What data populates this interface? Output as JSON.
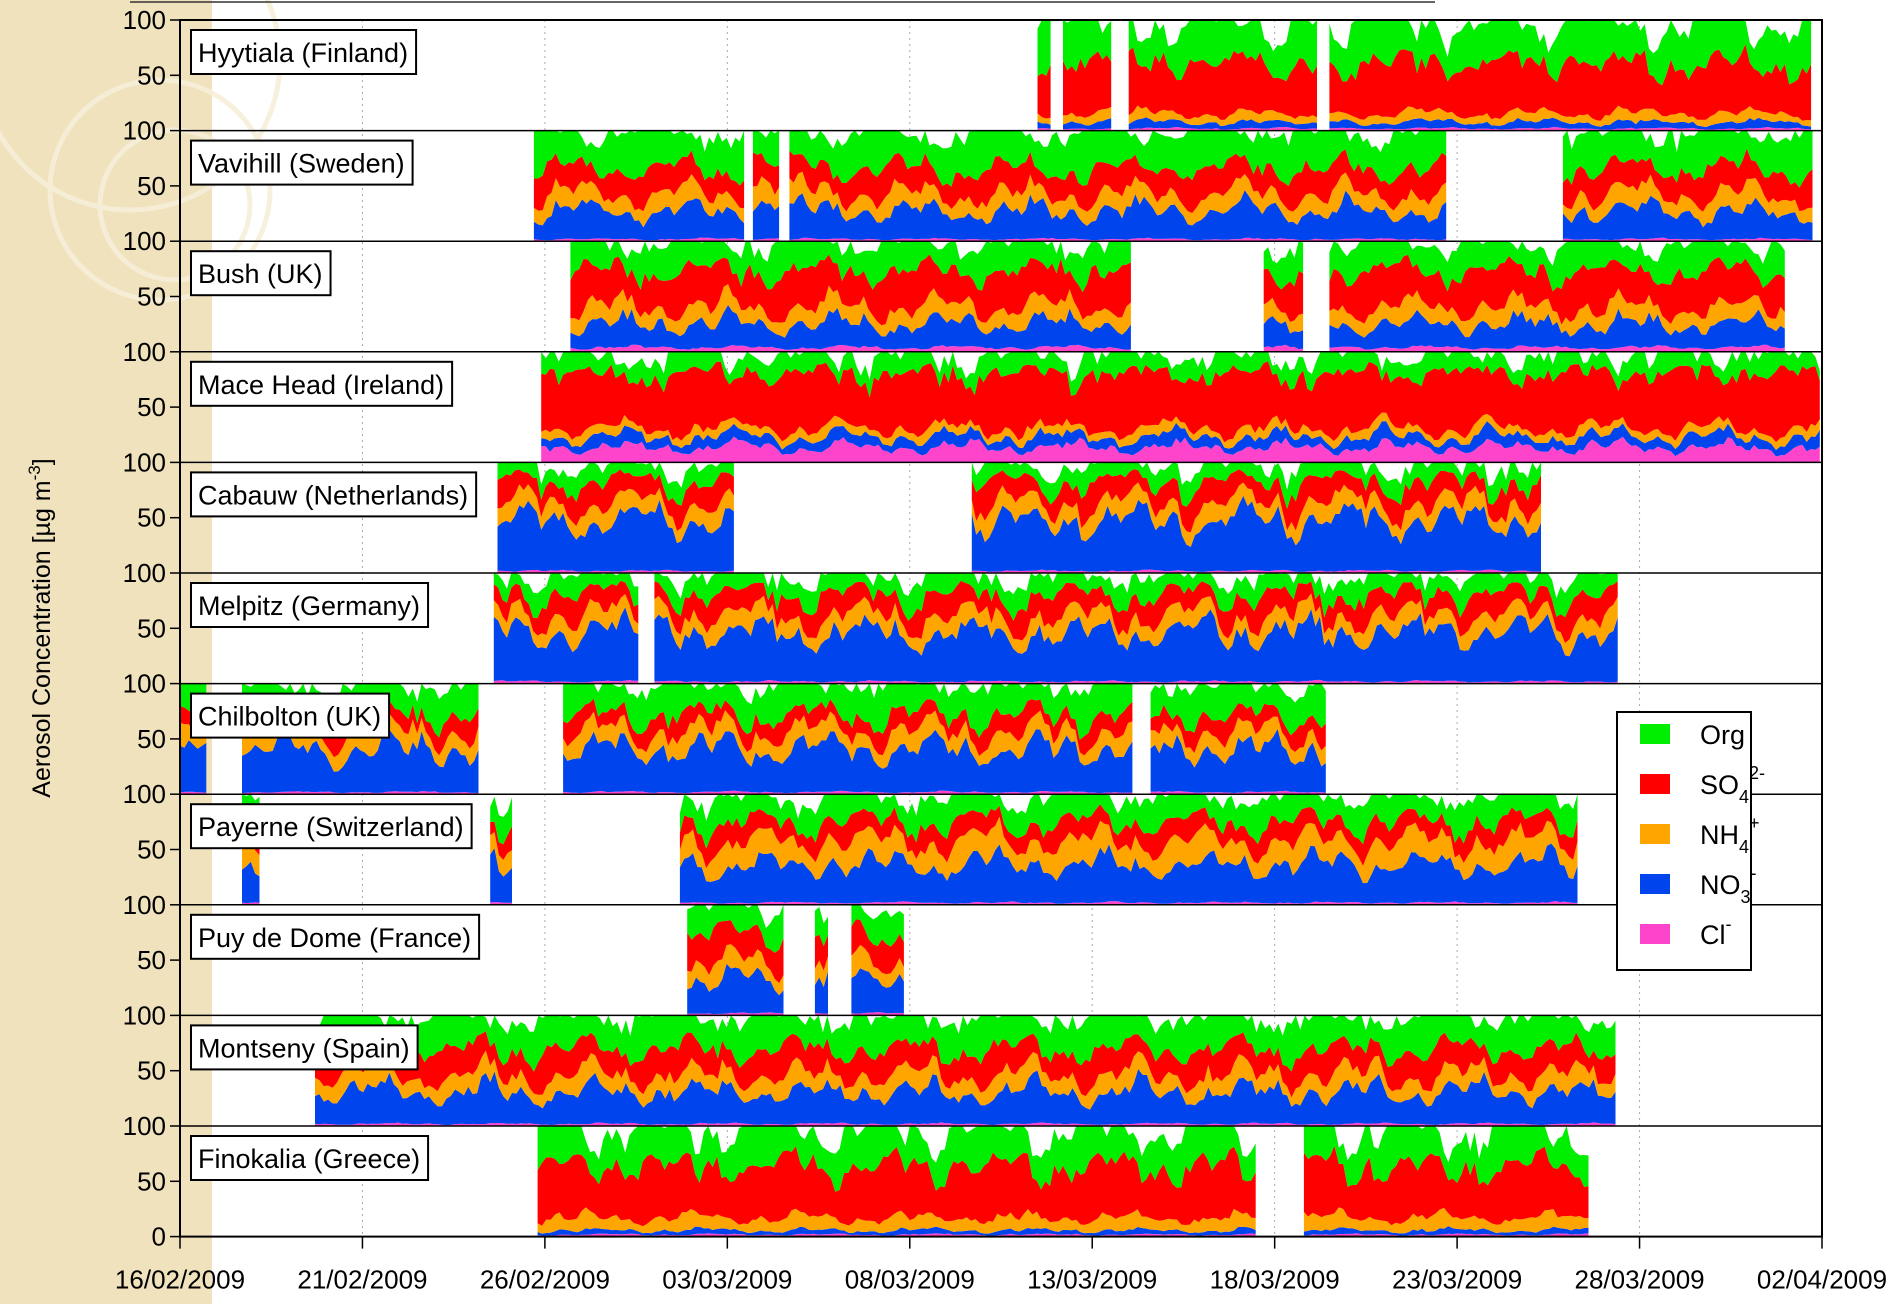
{
  "chart_data": {
    "type": "area",
    "ylabel": "Aerosol Concentration [µg m",
    "ylabel_superscript": "-3",
    "ylabel_close": "]",
    "x_ticks": [
      "16/02/2009",
      "21/02/2009",
      "26/02/2009",
      "03/03/2009",
      "08/03/2009",
      "13/03/2009",
      "18/03/2009",
      "23/03/2009",
      "28/03/2009",
      "02/04/2009"
    ],
    "x_range": [
      "16/02/2009",
      "02/04/2009"
    ],
    "y_ticks_panel": [
      "100",
      "50"
    ],
    "y_tick_bottom": "0",
    "ylim": [
      0,
      100
    ],
    "grid": "vertical dotted",
    "legend_position": "right",
    "stacking_order": [
      "Cl",
      "NO3",
      "NH4",
      "SO4",
      "Org"
    ],
    "series": [
      {
        "key": "Org",
        "name": "Org",
        "sup": "",
        "sub": "",
        "color": "#00ee00"
      },
      {
        "key": "SO4",
        "name": "SO",
        "sub": "4",
        "sup": "2-",
        "color": "#ff0000"
      },
      {
        "key": "NH4",
        "name": "NH",
        "sub": "4",
        "sup": "+",
        "color": "#ffa500"
      },
      {
        "key": "NO3",
        "name": "NO",
        "sub": "3",
        "sup": "-",
        "color": "#0044ee"
      },
      {
        "key": "Cl",
        "name": "Cl",
        "sub": "",
        "sup": "-",
        "color": "#ff44cc"
      }
    ],
    "stations": [
      {
        "name": "Hyytiala (Finland)",
        "segments": [
          [
            23.5,
            23.9
          ],
          [
            24.2,
            25.6
          ],
          [
            26.0,
            31.2
          ],
          [
            31.5,
            44.8
          ]
        ],
        "mean_share": {
          "Cl": 2,
          "NO3": 6,
          "NH4": 8,
          "SO4": 48,
          "Org": 36
        }
      },
      {
        "name": "Vavihill (Sweden)",
        "segments": [
          [
            9.7,
            15.5
          ],
          [
            15.7,
            16.5
          ],
          [
            16.7,
            34.7
          ],
          [
            37.9,
            44.8
          ]
        ],
        "mean_share": {
          "Cl": 2,
          "NO3": 26,
          "NH4": 16,
          "SO4": 24,
          "Org": 32
        }
      },
      {
        "name": "Bush (UK)",
        "segments": [
          [
            10.7,
            26.1
          ],
          [
            29.7,
            30.8
          ],
          [
            31.5,
            44.0
          ]
        ],
        "mean_share": {
          "Cl": 4,
          "NO3": 22,
          "NH4": 16,
          "SO4": 34,
          "Org": 24
        }
      },
      {
        "name": "Mace Head (Ireland)",
        "segments": [
          [
            9.9,
            45.0
          ]
        ],
        "mean_share": {
          "Cl": 14,
          "NO3": 10,
          "NH4": 8,
          "SO4": 52,
          "Org": 16
        }
      },
      {
        "name": "Cabauw (Netherlands)",
        "segments": [
          [
            8.7,
            15.2
          ],
          [
            21.7,
            37.4
          ]
        ],
        "mean_share": {
          "Cl": 2,
          "NO3": 48,
          "NH4": 16,
          "SO4": 20,
          "Org": 14
        }
      },
      {
        "name": "Melpitz (Germany)",
        "segments": [
          [
            8.6,
            12.6
          ],
          [
            13.0,
            39.5
          ]
        ],
        "mean_share": {
          "Cl": 2,
          "NO3": 46,
          "NH4": 16,
          "SO4": 20,
          "Org": 16
        }
      },
      {
        "name": "Chilbolton (UK)",
        "segments": [
          [
            0.0,
            0.8
          ],
          [
            1.7,
            8.2
          ],
          [
            10.5,
            26.1
          ],
          [
            26.6,
            31.4
          ]
        ],
        "mean_share": {
          "Cl": 2,
          "NO3": 40,
          "NH4": 16,
          "SO4": 16,
          "Org": 26
        }
      },
      {
        "name": "Payerne (Switzerland)",
        "segments": [
          [
            1.7,
            2.2
          ],
          [
            8.5,
            9.1
          ],
          [
            13.7,
            38.3
          ]
        ],
        "mean_share": {
          "Cl": 2,
          "NO3": 36,
          "NH4": 22,
          "SO4": 18,
          "Org": 22
        }
      },
      {
        "name": "Puy de Dome (France)",
        "segments": [
          [
            13.9,
            16.6
          ],
          [
            17.4,
            17.8
          ],
          [
            18.4,
            19.9
          ]
        ],
        "mean_share": {
          "Cl": 2,
          "NO3": 30,
          "NH4": 16,
          "SO4": 28,
          "Org": 24
        }
      },
      {
        "name": "Montseny (Spain)",
        "segments": [
          [
            3.7,
            39.4
          ]
        ],
        "mean_share": {
          "Cl": 2,
          "NO3": 30,
          "NH4": 16,
          "SO4": 24,
          "Org": 28
        }
      },
      {
        "name": "Finokalia (Greece)",
        "segments": [
          [
            9.8,
            29.5
          ],
          [
            30.8,
            38.6
          ]
        ],
        "mean_share": {
          "Cl": 2,
          "NO3": 4,
          "NH4": 12,
          "SO4": 50,
          "Org": 32
        }
      }
    ]
  }
}
